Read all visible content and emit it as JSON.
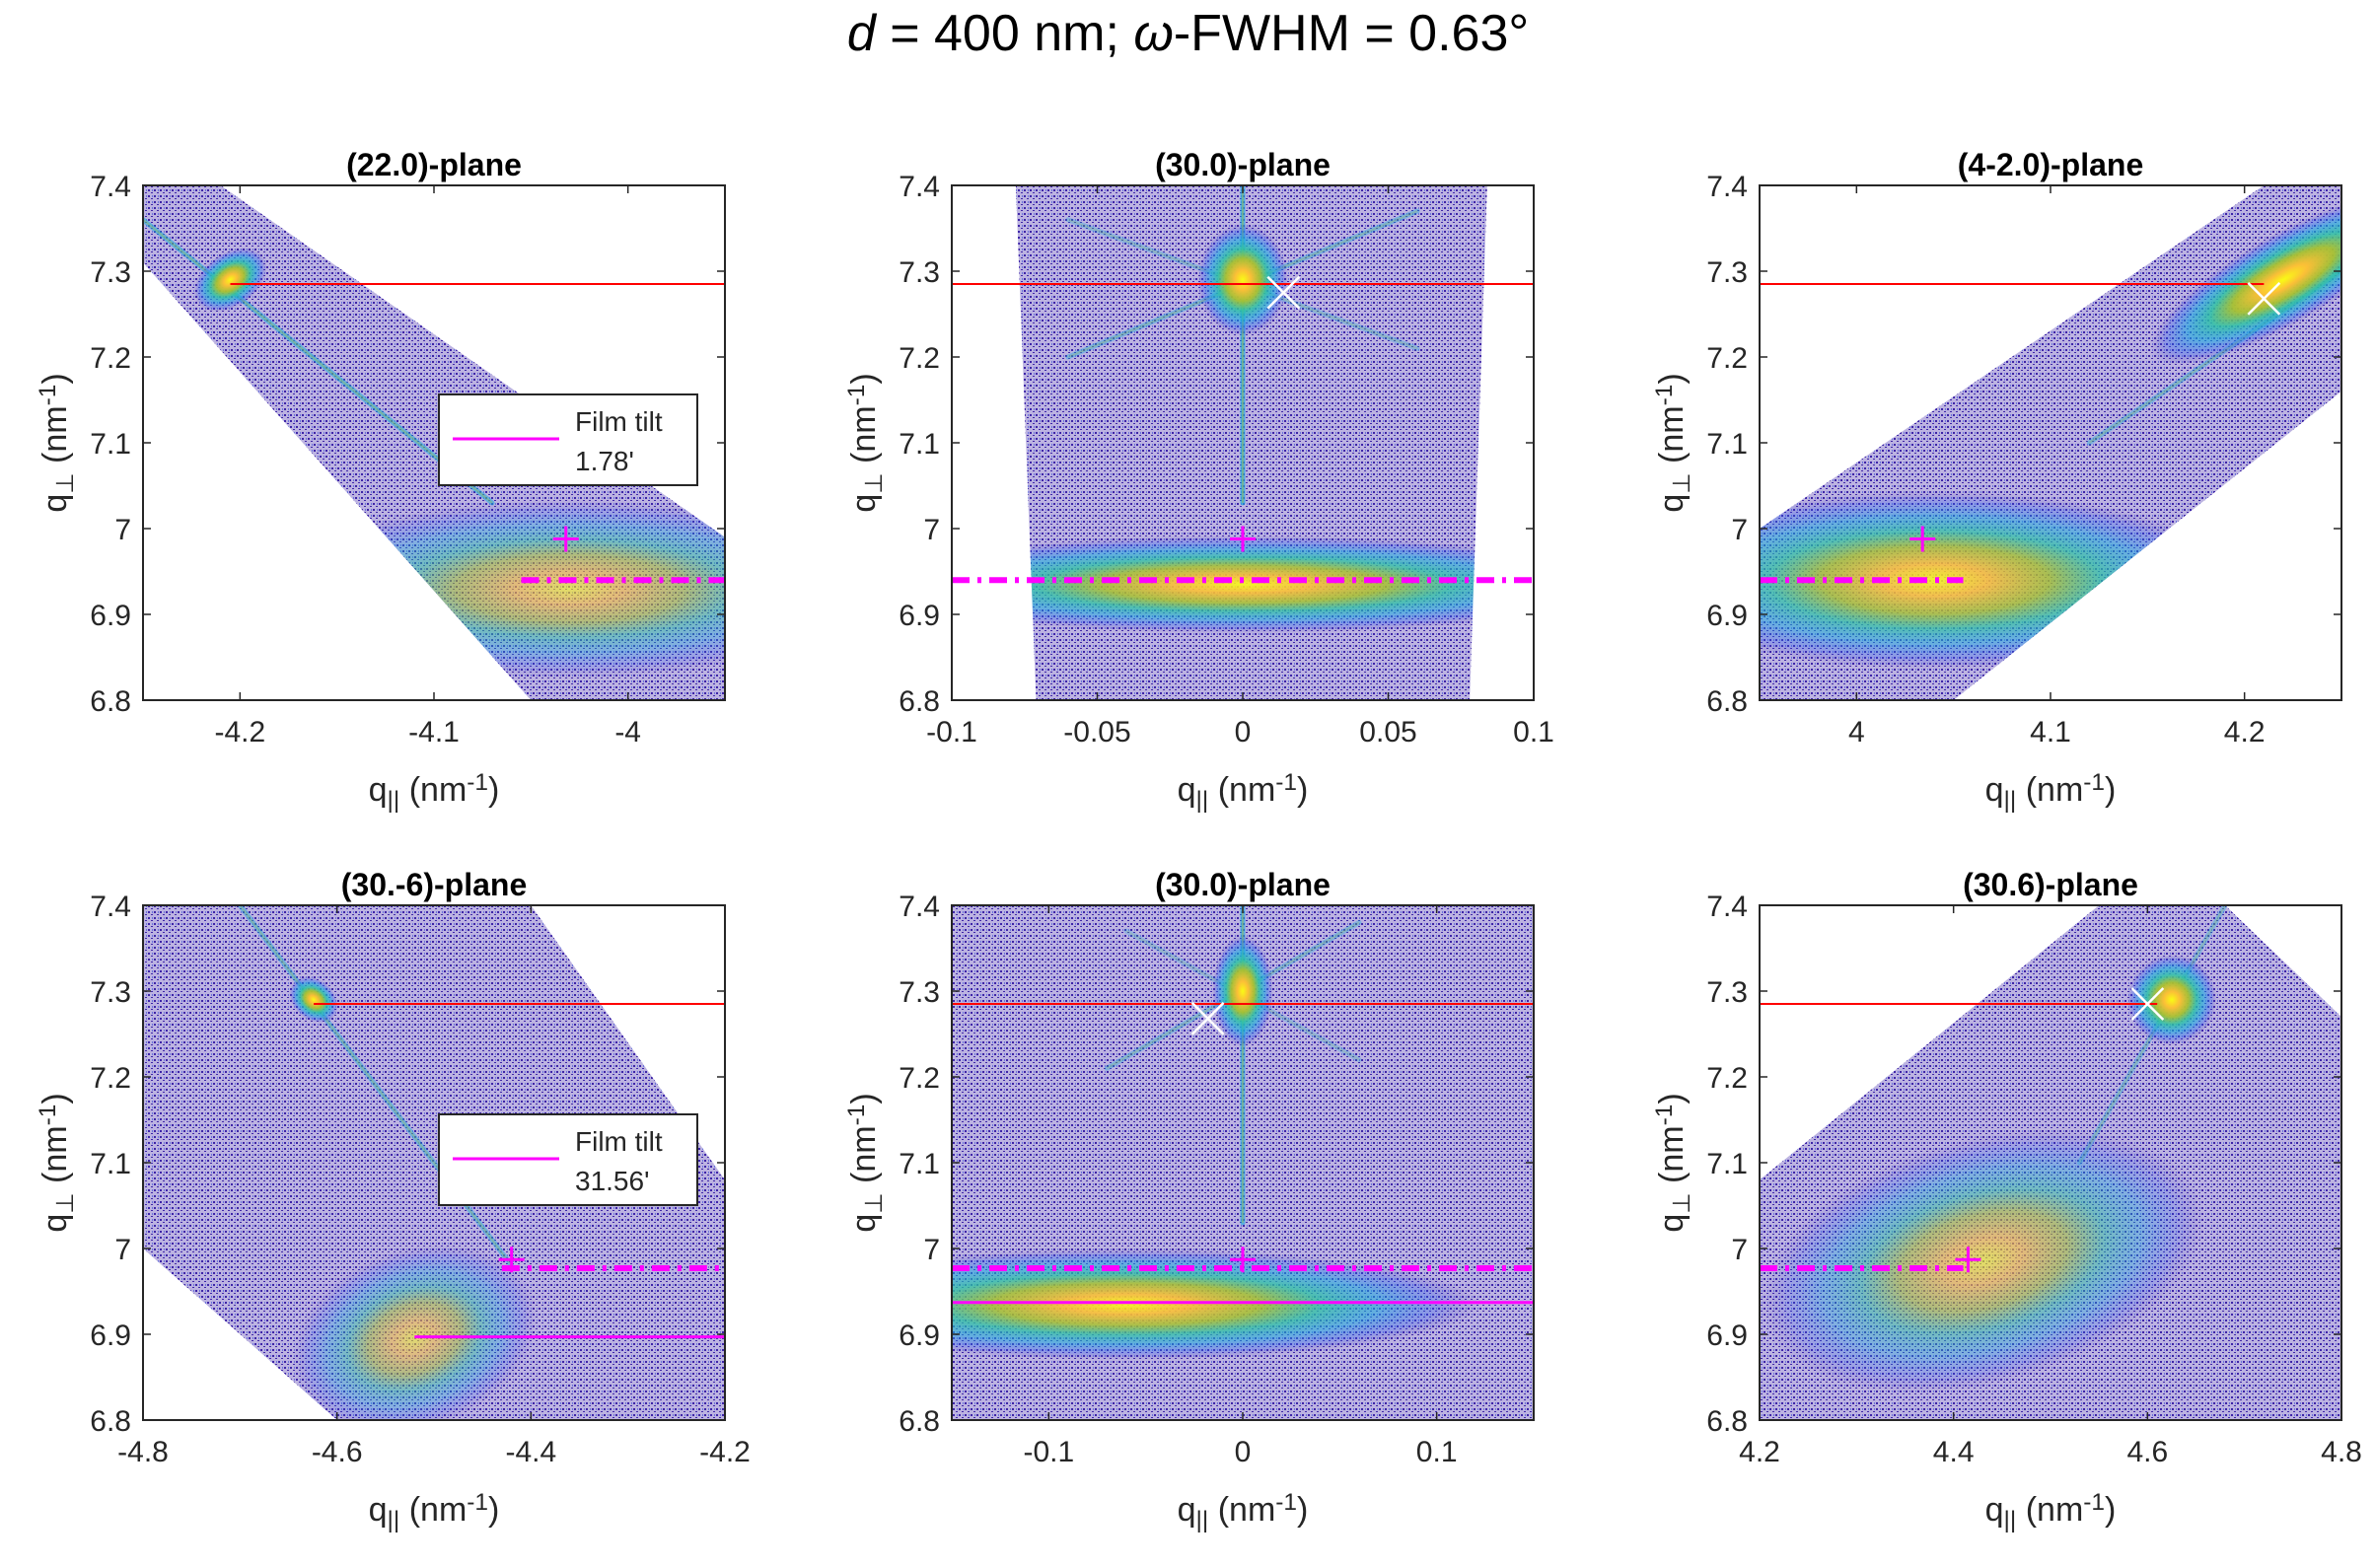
{
  "figure": {
    "title_prefix": "d",
    "title_mid": " = 400 nm; ",
    "title_omega": "ω",
    "title_suffix": "-FWHM = 0.63°",
    "colors": {
      "reference_line": "#ff0000",
      "film_line": "#ff00ff",
      "marker_plus": "#ff00ff",
      "marker_cross": "#ffffff",
      "colormap": [
        "#3e26a8",
        "#2f5ef1",
        "#17a9e0",
        "#2cc2a4",
        "#a6c131",
        "#fbbf37",
        "#f9fb15"
      ]
    }
  },
  "chart_data": [
    {
      "type": "heatmap",
      "title": "(22.0)-plane",
      "xlabel": "q|| (nm-1)",
      "ylabel": "q⊥ (nm-1)",
      "xlim": [
        -4.25,
        -3.95
      ],
      "ylim": [
        6.8,
        7.4
      ],
      "xticks": [
        -4.2,
        -4.1,
        -4.0
      ],
      "xticklabels": [
        "-4.2",
        "-4.1",
        "-4"
      ],
      "yticks": [
        6.8,
        6.9,
        7.0,
        7.1,
        7.2,
        7.3,
        7.4
      ],
      "yticklabels": [
        "6.8",
        "6.9",
        "7",
        "7.1",
        "7.2",
        "7.3",
        "7.4"
      ],
      "data_region": [
        [
          -4.25,
          7.38
        ],
        [
          -4.25,
          7.31
        ],
        [
          -4.05,
          6.8
        ],
        [
          -3.95,
          6.8
        ],
        [
          -3.95,
          6.99
        ],
        [
          -4.21,
          7.4
        ],
        [
          -4.25,
          7.4
        ]
      ],
      "peaks": [
        {
          "name": "substrate",
          "x": -4.205,
          "y": 7.29,
          "intensity": 1.0,
          "sx": 0.008,
          "sy": 0.012,
          "angle": -35
        },
        {
          "name": "film",
          "x": -4.03,
          "y": 6.93,
          "intensity": 0.6,
          "sx": 0.06,
          "sy": 0.04,
          "angle": 0
        }
      ],
      "streaks": [
        {
          "x1": -4.25,
          "y1": 7.36,
          "x2": -4.07,
          "y2": 7.03,
          "intensity": 0.55
        }
      ],
      "reference_line": {
        "y": 7.285,
        "x1": -4.205,
        "x2": -3.95
      },
      "film_lines": [
        {
          "style": "dashdot",
          "y": 6.94,
          "x1": -4.055,
          "x2": -3.95
        }
      ],
      "markers": [
        {
          "kind": "plus",
          "x": -4.032,
          "y": 6.988
        }
      ],
      "legend": {
        "entry": "Film tilt",
        "value": "1.78'",
        "placement": "right"
      }
    },
    {
      "type": "heatmap",
      "title": "(30.0)-plane",
      "xlabel": "q|| (nm-1)",
      "ylabel": "q⊥ (nm-1)",
      "xlim": [
        -0.1,
        0.1
      ],
      "ylim": [
        6.8,
        7.4
      ],
      "xticks": [
        -0.1,
        -0.05,
        0,
        0.05,
        0.1
      ],
      "xticklabels": [
        "-0.1",
        "-0.05",
        "0",
        "0.05",
        "0.1"
      ],
      "yticks": [
        6.8,
        6.9,
        7.0,
        7.1,
        7.2,
        7.3,
        7.4
      ],
      "yticklabels": [
        "6.8",
        "6.9",
        "7",
        "7.1",
        "7.2",
        "7.3",
        "7.4"
      ],
      "data_region": [
        [
          -0.078,
          7.4
        ],
        [
          0.084,
          7.4
        ],
        [
          0.078,
          6.8
        ],
        [
          -0.071,
          6.8
        ]
      ],
      "peaks": [
        {
          "name": "substrate",
          "x": 0.0,
          "y": 7.29,
          "intensity": 1.0,
          "sx": 0.006,
          "sy": 0.025,
          "angle": 0
        },
        {
          "name": "film",
          "x": 0.0,
          "y": 6.935,
          "intensity": 0.9,
          "sx": 0.05,
          "sy": 0.022,
          "angle": 0
        }
      ],
      "streaks": [
        {
          "x1": 0.0,
          "y1": 7.4,
          "x2": 0.0,
          "y2": 7.03,
          "intensity": 0.65
        },
        {
          "x1": -0.06,
          "y1": 7.2,
          "x2": 0.06,
          "y2": 7.37,
          "intensity": 0.4
        },
        {
          "x1": -0.06,
          "y1": 7.36,
          "x2": 0.06,
          "y2": 7.21,
          "intensity": 0.3
        }
      ],
      "reference_line": {
        "y": 7.285,
        "x1": -0.1,
        "x2": 0.1
      },
      "film_lines": [
        {
          "style": "dashdot",
          "y": 6.94,
          "x1": -0.1,
          "x2": 0.1
        }
      ],
      "markers": [
        {
          "kind": "plus",
          "x": 0.0,
          "y": 6.988
        },
        {
          "kind": "x",
          "x": 0.014,
          "y": 7.275
        }
      ]
    },
    {
      "type": "heatmap",
      "title": "(4-2.0)-plane",
      "xlabel": "q|| (nm-1)",
      "ylabel": "q⊥ (nm-1)",
      "xlim": [
        3.95,
        4.25
      ],
      "ylim": [
        6.8,
        7.4
      ],
      "xticks": [
        4.0,
        4.1,
        4.2
      ],
      "xticklabels": [
        "4",
        "4.1",
        "4.2"
      ],
      "yticks": [
        6.8,
        6.9,
        7.0,
        7.1,
        7.2,
        7.3,
        7.4
      ],
      "yticklabels": [
        "6.8",
        "6.9",
        "7",
        "7.1",
        "7.2",
        "7.3",
        "7.4"
      ],
      "data_region": [
        [
          3.95,
          6.8
        ],
        [
          3.95,
          7.0
        ],
        [
          4.21,
          7.4
        ],
        [
          4.25,
          7.4
        ],
        [
          4.25,
          7.16
        ],
        [
          4.05,
          6.8
        ]
      ],
      "peaks": [
        {
          "name": "substrate",
          "x": 4.22,
          "y": 7.29,
          "intensity": 1.0,
          "sx": 0.03,
          "sy": 0.02,
          "angle": -30
        },
        {
          "name": "film",
          "x": 4.04,
          "y": 6.94,
          "intensity": 0.85,
          "sx": 0.06,
          "sy": 0.04,
          "angle": 0
        }
      ],
      "streaks": [
        {
          "x1": 4.12,
          "y1": 7.1,
          "x2": 4.25,
          "y2": 7.3,
          "intensity": 0.4
        }
      ],
      "reference_line": {
        "y": 7.285,
        "x1": 3.95,
        "x2": 4.21
      },
      "film_lines": [
        {
          "style": "dashdot",
          "y": 6.94,
          "x1": 3.95,
          "x2": 4.055
        }
      ],
      "markers": [
        {
          "kind": "plus",
          "x": 4.034,
          "y": 6.988
        },
        {
          "kind": "x",
          "x": 4.21,
          "y": 7.268
        }
      ]
    },
    {
      "type": "heatmap",
      "title": "(30.-6)-plane",
      "xlabel": "q|| (nm-1)",
      "ylabel": "q⊥ (nm-1)",
      "xlim": [
        -4.8,
        -4.2
      ],
      "ylim": [
        6.8,
        7.4
      ],
      "xticks": [
        -4.8,
        -4.6,
        -4.4,
        -4.2
      ],
      "xticklabels": [
        "-4.8",
        "-4.6",
        "-4.4",
        "-4.2"
      ],
      "yticks": [
        6.8,
        6.9,
        7.0,
        7.1,
        7.2,
        7.3,
        7.4
      ],
      "yticklabels": [
        "6.8",
        "6.9",
        "7",
        "7.1",
        "7.2",
        "7.3",
        "7.4"
      ],
      "data_region": [
        [
          -4.77,
          7.4
        ],
        [
          -4.4,
          7.4
        ],
        [
          -4.2,
          7.08
        ],
        [
          -4.2,
          6.8
        ],
        [
          -4.6,
          6.8
        ],
        [
          -4.8,
          7.0
        ],
        [
          -4.8,
          7.4
        ]
      ],
      "peaks": [
        {
          "name": "substrate",
          "x": -4.624,
          "y": 7.29,
          "intensity": 1.0,
          "sx": 0.008,
          "sy": 0.012,
          "angle": -50
        },
        {
          "name": "film",
          "x": -4.52,
          "y": 6.895,
          "intensity": 0.55,
          "sx": 0.05,
          "sy": 0.04,
          "angle": -20
        }
      ],
      "streaks": [
        {
          "x1": -4.7,
          "y1": 7.4,
          "x2": -4.42,
          "y2": 6.98,
          "intensity": 0.45
        }
      ],
      "reference_line": {
        "y": 7.285,
        "x1": -4.624,
        "x2": -4.2
      },
      "film_lines": [
        {
          "style": "dashdot",
          "y": 6.977,
          "x1": -4.43,
          "x2": -4.2
        },
        {
          "style": "solid",
          "y": 6.897,
          "x1": -4.52,
          "x2": -4.2
        }
      ],
      "markers": [
        {
          "kind": "plus",
          "x": -4.42,
          "y": 6.987
        }
      ],
      "legend": {
        "entry": "Film tilt",
        "value": "31.56'",
        "placement": "right"
      }
    },
    {
      "type": "heatmap",
      "title": "(30.0)-plane",
      "xlabel": "q|| (nm-1)",
      "ylabel": "q⊥ (nm-1)",
      "xlim": [
        -0.15,
        0.15
      ],
      "ylim": [
        6.8,
        7.4
      ],
      "xticks": [
        -0.1,
        0,
        0.1
      ],
      "xticklabels": [
        "-0.1",
        "0",
        "0.1"
      ],
      "yticks": [
        6.8,
        6.9,
        7.0,
        7.1,
        7.2,
        7.3,
        7.4
      ],
      "yticklabels": [
        "6.8",
        "6.9",
        "7",
        "7.1",
        "7.2",
        "7.3",
        "7.4"
      ],
      "data_region": [
        [
          -0.15,
          7.4
        ],
        [
          0.15,
          7.4
        ],
        [
          0.15,
          6.8
        ],
        [
          -0.15,
          6.8
        ]
      ],
      "peaks": [
        {
          "name": "substrate",
          "x": 0.0,
          "y": 7.3,
          "intensity": 1.0,
          "sx": 0.006,
          "sy": 0.025,
          "angle": 0
        },
        {
          "name": "film",
          "x": -0.06,
          "y": 6.935,
          "intensity": 0.9,
          "sx": 0.07,
          "sy": 0.025,
          "angle": 0
        }
      ],
      "streaks": [
        {
          "x1": 0.0,
          "y1": 7.4,
          "x2": 0.0,
          "y2": 7.03,
          "intensity": 0.6
        },
        {
          "x1": -0.07,
          "y1": 7.21,
          "x2": 0.06,
          "y2": 7.38,
          "intensity": 0.35
        },
        {
          "x1": -0.06,
          "y1": 7.37,
          "x2": 0.06,
          "y2": 7.22,
          "intensity": 0.25
        }
      ],
      "reference_line": {
        "y": 7.285,
        "x1": -0.15,
        "x2": 0.15
      },
      "film_lines": [
        {
          "style": "dashdot",
          "y": 6.977,
          "x1": -0.15,
          "x2": 0.15
        },
        {
          "style": "solid",
          "y": 6.937,
          "x1": -0.15,
          "x2": 0.15
        }
      ],
      "markers": [
        {
          "kind": "plus",
          "x": 0.0,
          "y": 6.987
        },
        {
          "kind": "x",
          "x": -0.018,
          "y": 7.268
        }
      ]
    },
    {
      "type": "heatmap",
      "title": "(30.6)-plane",
      "xlabel": "q|| (nm-1)",
      "ylabel": "q⊥ (nm-1)",
      "xlim": [
        4.2,
        4.8
      ],
      "ylim": [
        6.8,
        7.4
      ],
      "xticks": [
        4.2,
        4.4,
        4.6,
        4.8
      ],
      "xticklabels": [
        "4.2",
        "4.4",
        "4.6",
        "4.8"
      ],
      "yticks": [
        6.8,
        6.9,
        7.0,
        7.1,
        7.2,
        7.3,
        7.4
      ],
      "yticklabels": [
        "6.8",
        "6.9",
        "7",
        "7.1",
        "7.2",
        "7.3",
        "7.4"
      ],
      "data_region": [
        [
          4.2,
          6.8
        ],
        [
          4.2,
          7.08
        ],
        [
          4.55,
          7.4
        ],
        [
          4.68,
          7.4
        ],
        [
          4.8,
          7.27
        ],
        [
          4.8,
          6.8
        ]
      ],
      "peaks": [
        {
          "name": "substrate",
          "x": 4.625,
          "y": 7.29,
          "intensity": 1.0,
          "sx": 0.018,
          "sy": 0.02,
          "angle": -55
        },
        {
          "name": "film",
          "x": 4.43,
          "y": 6.985,
          "intensity": 0.6,
          "sx": 0.09,
          "sy": 0.055,
          "angle": -15
        }
      ],
      "streaks": [
        {
          "x1": 4.53,
          "y1": 7.1,
          "x2": 4.68,
          "y2": 7.4,
          "intensity": 0.35
        }
      ],
      "reference_line": {
        "y": 7.285,
        "x1": 4.2,
        "x2": 4.61
      },
      "film_lines": [
        {
          "style": "dashdot",
          "y": 6.977,
          "x1": 4.2,
          "x2": 4.41
        }
      ],
      "markers": [
        {
          "kind": "plus",
          "x": 4.415,
          "y": 6.987
        },
        {
          "kind": "x",
          "x": 4.6,
          "y": 7.285
        }
      ]
    }
  ]
}
